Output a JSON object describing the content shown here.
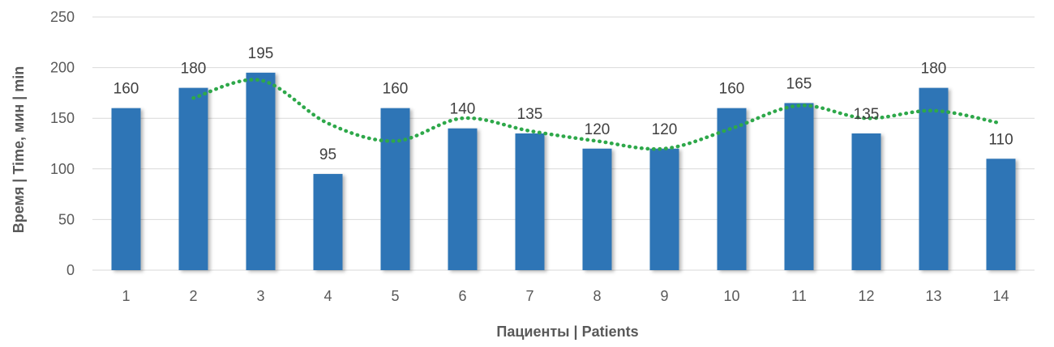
{
  "chart_data": {
    "type": "bar",
    "categories": [
      "1",
      "2",
      "3",
      "4",
      "5",
      "6",
      "7",
      "8",
      "9",
      "10",
      "11",
      "12",
      "13",
      "14"
    ],
    "series": [
      {
        "values": [
          160,
          180,
          195,
          95,
          160,
          140,
          135,
          120,
          120,
          160,
          165,
          135,
          180,
          110
        ]
      }
    ],
    "data_labels": [
      "160",
      "180",
      "195",
      "95",
      "160",
      "140",
      "135",
      "120",
      "120",
      "160",
      "165",
      "135",
      "180",
      "110"
    ],
    "trendline": {
      "type": "moving_average",
      "period": 2,
      "style": "dotted",
      "color": "#2EA84A"
    },
    "xlabel": "Пациенты | Patients",
    "ylabel": "Время | Time, мин | min",
    "ylim": [
      0,
      250
    ],
    "yticks": [
      "0",
      "50",
      "100",
      "150",
      "200",
      "250"
    ],
    "grid": true,
    "legend": "none",
    "colors": {
      "bar": "#2E75B6",
      "trend": "#2EA84A",
      "grid": "#D9D9D9"
    }
  }
}
